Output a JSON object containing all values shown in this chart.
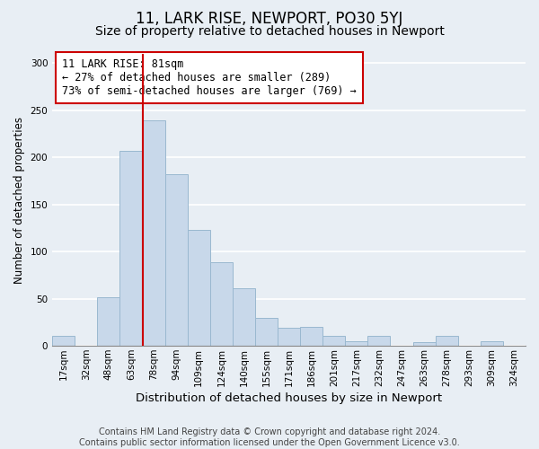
{
  "title": "11, LARK RISE, NEWPORT, PO30 5YJ",
  "subtitle": "Size of property relative to detached houses in Newport",
  "xlabel": "Distribution of detached houses by size in Newport",
  "ylabel": "Number of detached properties",
  "bar_color": "#c8d8ea",
  "bar_edge_color": "#9ab8d0",
  "categories": [
    "17sqm",
    "32sqm",
    "48sqm",
    "63sqm",
    "78sqm",
    "94sqm",
    "109sqm",
    "124sqm",
    "140sqm",
    "155sqm",
    "171sqm",
    "186sqm",
    "201sqm",
    "217sqm",
    "232sqm",
    "247sqm",
    "263sqm",
    "278sqm",
    "293sqm",
    "309sqm",
    "324sqm"
  ],
  "values": [
    11,
    0,
    52,
    207,
    239,
    182,
    123,
    89,
    61,
    30,
    19,
    20,
    11,
    5,
    11,
    0,
    4,
    11,
    0,
    5,
    0
  ],
  "ylim": [
    0,
    310
  ],
  "yticks": [
    0,
    50,
    100,
    150,
    200,
    250,
    300
  ],
  "vline_index": 4,
  "vline_color": "#cc0000",
  "annotation_line1": "11 LARK RISE: 81sqm",
  "annotation_line2": "← 27% of detached houses are smaller (289)",
  "annotation_line3": "73% of semi-detached houses are larger (769) →",
  "annotation_box_color": "#ffffff",
  "annotation_box_edge": "#cc0000",
  "footer_line1": "Contains HM Land Registry data © Crown copyright and database right 2024.",
  "footer_line2": "Contains public sector information licensed under the Open Government Licence v3.0.",
  "background_color": "#e8eef4",
  "plot_bg_color": "#e8eef4",
  "grid_color": "#ffffff",
  "title_fontsize": 12,
  "subtitle_fontsize": 10,
  "xlabel_fontsize": 9.5,
  "ylabel_fontsize": 8.5,
  "tick_fontsize": 7.5,
  "annotation_fontsize": 8.5,
  "footer_fontsize": 7
}
